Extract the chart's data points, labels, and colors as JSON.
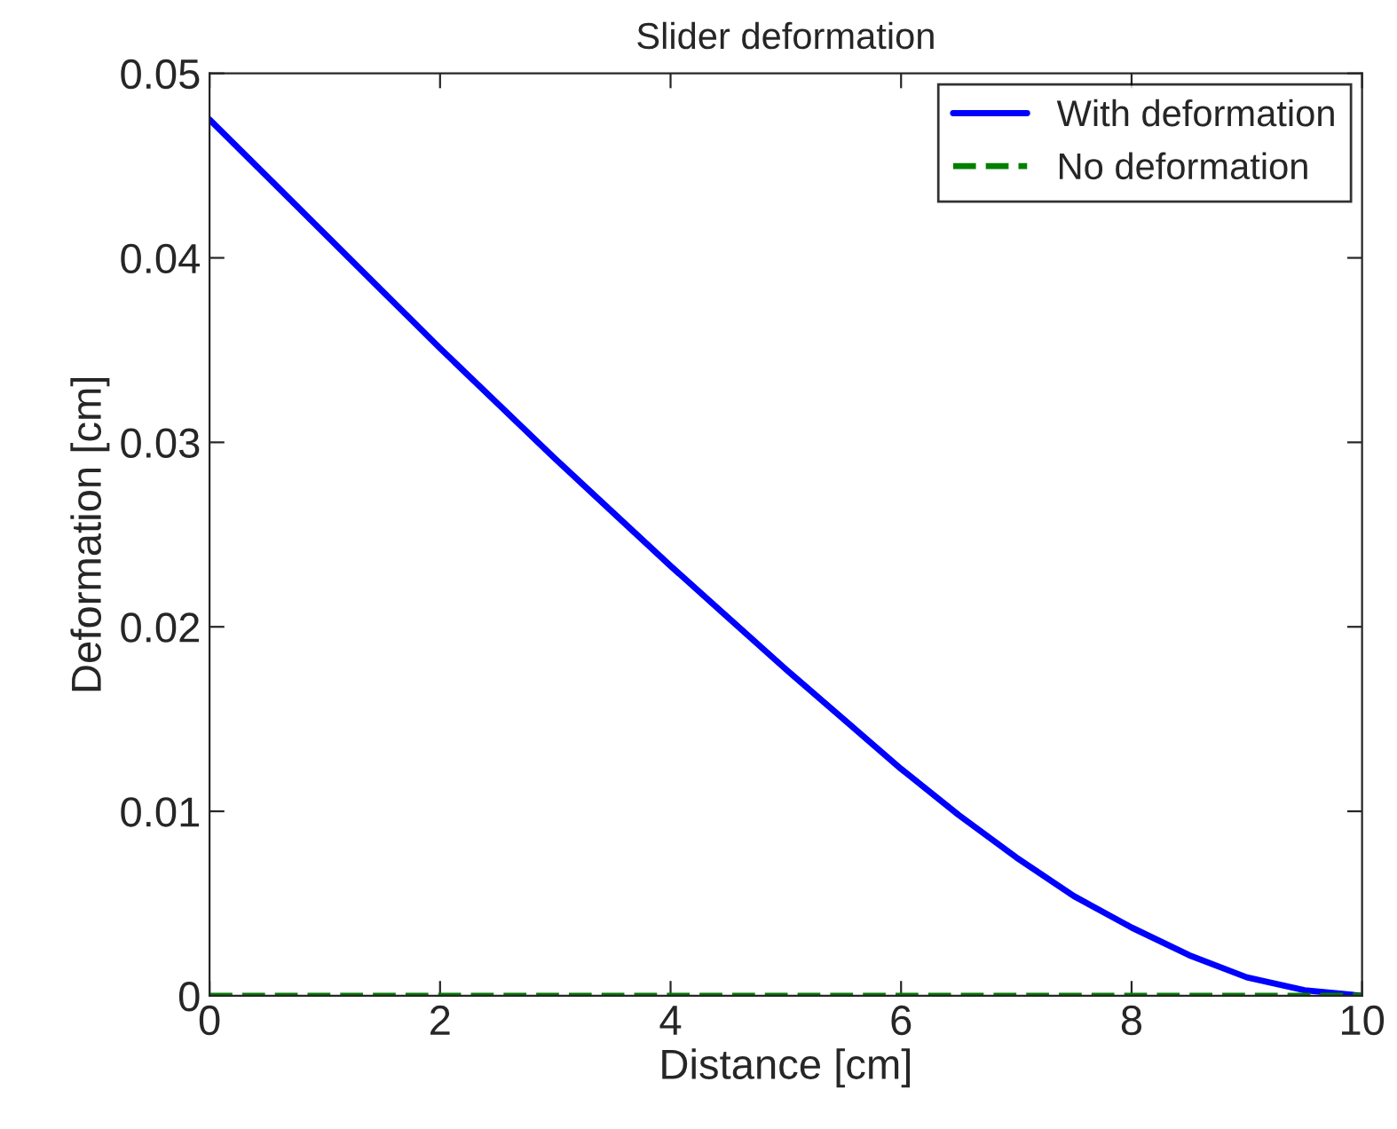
{
  "chart_data": {
    "type": "line",
    "title": "Slider deformation",
    "xlabel": "Distance [cm]",
    "ylabel": "Deformation [cm]",
    "x": [
      0,
      0.5,
      1,
      1.5,
      2,
      2.5,
      3,
      3.5,
      4,
      4.5,
      5,
      5.5,
      6,
      6.5,
      7,
      7.5,
      8,
      8.5,
      9,
      9.5,
      10
    ],
    "series": [
      {
        "name": "With deformation",
        "color": "#0000ff",
        "line_style": "solid",
        "values": [
          0.0475,
          0.0444,
          0.0413,
          0.0382,
          0.0351,
          0.0321,
          0.0291,
          0.0262,
          0.0233,
          0.0205,
          0.0177,
          0.015,
          0.0123,
          0.0098,
          0.0075,
          0.0054,
          0.0037,
          0.0022,
          0.001,
          0.0003,
          0.0
        ]
      },
      {
        "name": "No deformation",
        "color": "#008000",
        "line_style": "dashed",
        "values": [
          0,
          0,
          0,
          0,
          0,
          0,
          0,
          0,
          0,
          0,
          0,
          0,
          0,
          0,
          0,
          0,
          0,
          0,
          0,
          0,
          0
        ]
      }
    ],
    "xlim": [
      0,
      10
    ],
    "xticks": [
      0,
      2,
      4,
      6,
      8,
      10
    ],
    "ylim": [
      0,
      0.05
    ],
    "yticks": [
      0,
      0.01,
      0.02,
      0.03,
      0.04,
      0.05
    ],
    "legend": "top right",
    "grid": false
  }
}
